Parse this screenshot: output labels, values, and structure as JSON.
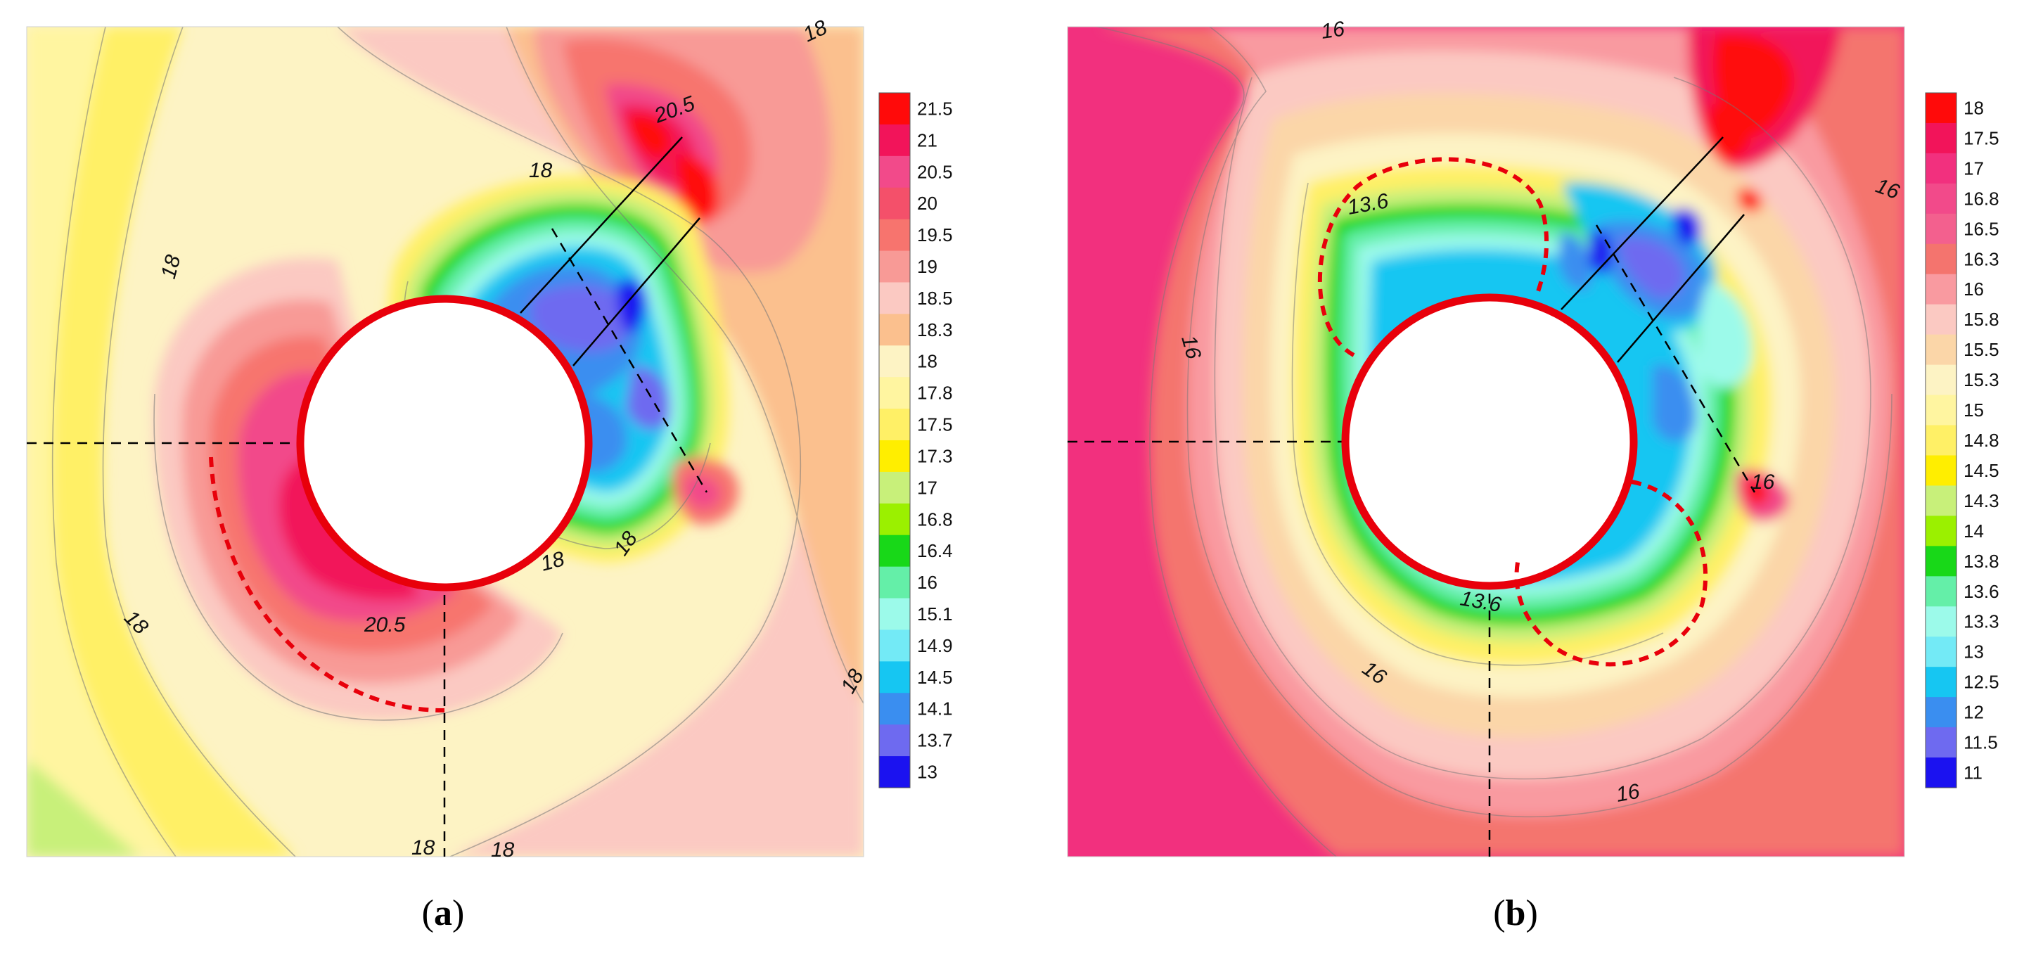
{
  "chart_data": [
    {
      "type": "heatmap",
      "panel_label": "a",
      "title": "",
      "description_note": "contour map around circular opening",
      "colorbar": {
        "levels": [
          "21.5",
          "21",
          "20.5",
          "20",
          "19.5",
          "19",
          "18.5",
          "18.3",
          "18",
          "17.8",
          "17.5",
          "17.3",
          "17",
          "16.8",
          "16.4",
          "16",
          "15.1",
          "14.9",
          "14.5",
          "14.1",
          "13.7",
          "13"
        ],
        "colors": [
          "#ff0a0a",
          "#f2145a",
          "#f24a8a",
          "#f4506a",
          "#f7746e",
          "#f89a96",
          "#fbc9c2",
          "#fbc08e",
          "#fdf3c4",
          "#fff5a0",
          "#fff066",
          "#ffee00",
          "#c8f07a",
          "#9bf000",
          "#18d818",
          "#64efa8",
          "#9cfaea",
          "#73eaf6",
          "#16c6f2",
          "#3a8ef0",
          "#6e6af0",
          "#1b12f0"
        ]
      },
      "contour_labels": [
        {
          "text": "18",
          "pos": "top-right"
        },
        {
          "text": "20.5",
          "pos": "upper-right"
        },
        {
          "text": "18",
          "pos": "upper-center"
        },
        {
          "text": "18",
          "pos": "left"
        },
        {
          "text": "18",
          "pos": "lower-center"
        },
        {
          "text": "18",
          "pos": "lower-center-right"
        },
        {
          "text": "20.5",
          "pos": "lower-center"
        },
        {
          "text": "18",
          "pos": "lower-left"
        },
        {
          "text": "18",
          "pos": "right"
        },
        {
          "text": "18",
          "pos": "bottom"
        },
        {
          "text": "18",
          "pos": "bottom"
        }
      ]
    },
    {
      "type": "heatmap",
      "panel_label": "b",
      "title": "",
      "colorbar": {
        "levels": [
          "18",
          "17.5",
          "17",
          "16.8",
          "16.5",
          "16.3",
          "16",
          "15.8",
          "15.5",
          "15.3",
          "15",
          "14.8",
          "14.5",
          "14.3",
          "14",
          "13.8",
          "13.6",
          "13.3",
          "13",
          "12.5",
          "12",
          "11.5",
          "11"
        ],
        "colors": [
          "#ff0a0a",
          "#f2145a",
          "#f2307e",
          "#f24a8a",
          "#f3608e",
          "#f4746e",
          "#f99aa0",
          "#fbc9c2",
          "#fbd6a8",
          "#fdf3c4",
          "#fff5a0",
          "#fff066",
          "#ffee00",
          "#c8f07a",
          "#9bf000",
          "#18d818",
          "#64efa8",
          "#9cfaea",
          "#73eaf6",
          "#16c6f2",
          "#3a8ef0",
          "#6e6af0",
          "#1b12f0"
        ]
      },
      "contour_labels": [
        {
          "text": "16",
          "pos": "top"
        },
        {
          "text": "16",
          "pos": "right"
        },
        {
          "text": "13.6",
          "pos": "upper-left"
        },
        {
          "text": "16",
          "pos": "left"
        },
        {
          "text": "16",
          "pos": "center-right"
        },
        {
          "text": "13.6",
          "pos": "lower-center"
        },
        {
          "text": "16",
          "pos": "lower-left"
        },
        {
          "text": "16",
          "pos": "bottom"
        }
      ]
    }
  ],
  "panels": {
    "a": {
      "label": "(a)"
    },
    "b": {
      "label": "(b)"
    }
  }
}
